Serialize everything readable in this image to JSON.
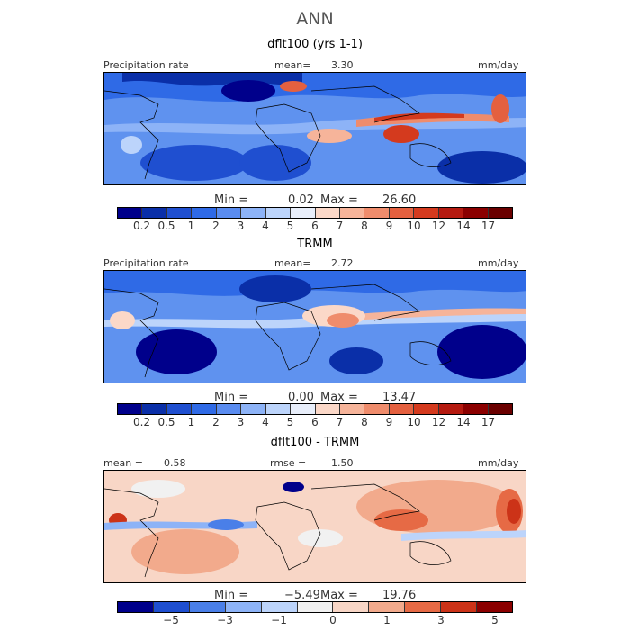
{
  "season": "ANN",
  "panels": [
    {
      "title": "dflt100 (yrs 1-1)",
      "left_header": "Precipitation rate",
      "stat_label": "mean=",
      "stat_value": "3.30",
      "units": "mm/day",
      "min_label": "Min =",
      "min_value": "0.02",
      "max_label": "Max =",
      "max_value": "26.60",
      "colorbar_ticks": [
        "0.2",
        "0.5",
        "1",
        "2",
        "3",
        "4",
        "5",
        "6",
        "7",
        "8",
        "9",
        "10",
        "12",
        "14",
        "17"
      ]
    },
    {
      "title": "TRMM",
      "left_header": "Precipitation rate",
      "stat_label": "mean=",
      "stat_value": "2.72",
      "units": "mm/day",
      "min_label": "Min =",
      "min_value": "0.00",
      "max_label": "Max =",
      "max_value": "13.47",
      "colorbar_ticks": [
        "0.2",
        "0.5",
        "1",
        "2",
        "3",
        "4",
        "5",
        "6",
        "7",
        "8",
        "9",
        "10",
        "12",
        "14",
        "17"
      ]
    },
    {
      "title": "dflt100 - TRMM",
      "mean_label": "mean =",
      "mean_value": "0.58",
      "rmse_label": "rmse =",
      "rmse_value": "1.50",
      "units": "mm/day",
      "min_label": "Min =",
      "min_value": "−5.49",
      "max_label": "Max =",
      "max_value": "19.76",
      "colorbar_ticks": [
        "−5",
        "−3",
        "−1",
        "0",
        "1",
        "3",
        "5"
      ]
    }
  ],
  "colors": {
    "abs_scale": [
      "#00008b",
      "#0a2fa8",
      "#1f4fd0",
      "#2f6ae6",
      "#5a8cf0",
      "#8db3f7",
      "#bcd4fb",
      "#e8eefa",
      "#fbd8c8",
      "#f6b49a",
      "#ef8c6c",
      "#e4603f",
      "#d43a1e",
      "#b51a10",
      "#8b0000",
      "#6a0000"
    ],
    "diff_scale": [
      "#00008b",
      "#1f4fd0",
      "#4a7fe8",
      "#8db3f7",
      "#bcd4fb",
      "#f1f1f1",
      "#f8d6c6",
      "#f2aa8c",
      "#e66a45",
      "#cc3318",
      "#8b0000"
    ]
  }
}
